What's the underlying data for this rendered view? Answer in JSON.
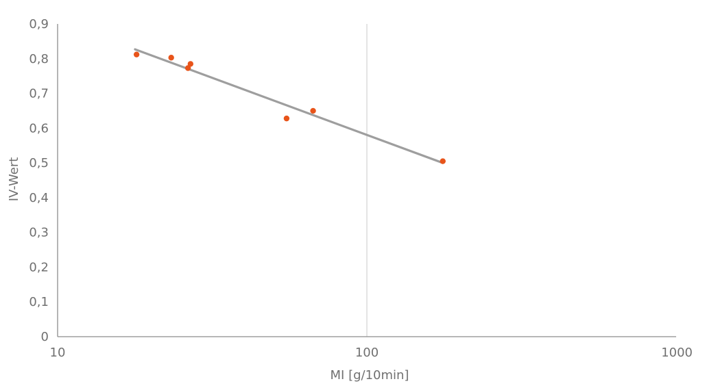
{
  "chart_data": {
    "type": "scatter",
    "xlabel": "MI [g/10min]",
    "ylabel": "IV-Wert",
    "x_scale": "log",
    "xlim": [
      10,
      1000
    ],
    "ylim": [
      0,
      0.9
    ],
    "x_ticks": [
      10,
      100,
      1000
    ],
    "x_tick_labels": [
      "10",
      "100",
      "1000"
    ],
    "y_ticks": [
      0,
      0.1,
      0.2,
      0.3,
      0.4,
      0.5,
      0.6,
      0.7,
      0.8,
      0.9
    ],
    "y_tick_labels": [
      "0",
      "0,1",
      "0,2",
      "0,3",
      "0,4",
      "0,5",
      "0,6",
      "0,7",
      "0,8",
      "0,9"
    ],
    "grid": "vertical major gridlines",
    "series": [
      {
        "points": [
          {
            "x": 18,
            "y": 0.812
          },
          {
            "x": 23.3,
            "y": 0.803
          },
          {
            "x": 26.4,
            "y": 0.773
          },
          {
            "x": 26.9,
            "y": 0.785
          },
          {
            "x": 55,
            "y": 0.628
          },
          {
            "x": 67,
            "y": 0.65
          },
          {
            "x": 176,
            "y": 0.505
          }
        ],
        "color": "#E8541A"
      }
    ],
    "trendline": {
      "type": "logarithmic",
      "from": {
        "x": 17.8,
        "y": 0.827
      },
      "to": {
        "x": 176,
        "y": 0.5
      },
      "color": "#9E9E9E"
    },
    "axis_color": "#BFBFBF",
    "tick_label_color": "#707070"
  }
}
